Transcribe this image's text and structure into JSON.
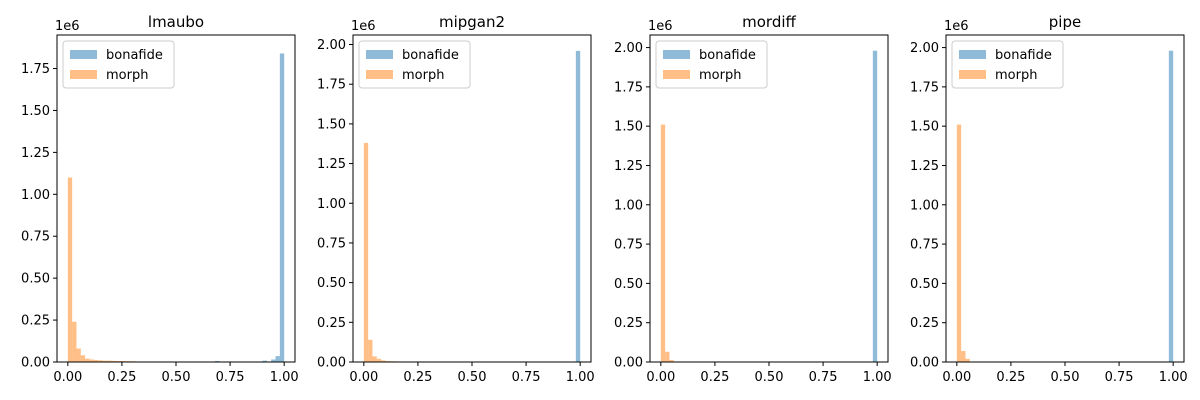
{
  "chart_data": [
    {
      "type": "bar",
      "title": "lmaubo",
      "offset_text": "1e6",
      "xlim": [
        -0.05,
        1.05
      ],
      "ylim": [
        0,
        1.95
      ],
      "xticks": [
        0.0,
        0.25,
        0.5,
        0.75,
        1.0
      ],
      "xtick_labels": [
        "0.00",
        "0.25",
        "0.50",
        "0.75",
        "1.00"
      ],
      "yticks": [
        0.0,
        0.25,
        0.5,
        0.75,
        1.0,
        1.25,
        1.5,
        1.75
      ],
      "ytick_labels": [
        "0.00",
        "0.25",
        "0.50",
        "0.75",
        "1.00",
        "1.25",
        "1.50",
        "1.75"
      ],
      "legend_position": "top-left",
      "series": [
        {
          "name": "bonafide",
          "color": "#1f77b4",
          "opacity": 0.5,
          "bins": [
            [
              0.4,
              0.003
            ],
            [
              0.68,
              0.006
            ],
            [
              0.9,
              0.008
            ],
            [
              0.94,
              0.015
            ],
            [
              0.96,
              0.035
            ],
            [
              0.98,
              1.84
            ]
          ]
        },
        {
          "name": "morph",
          "color": "#ff7f0e",
          "opacity": 0.5,
          "bins": [
            [
              0.0,
              1.1
            ],
            [
              0.02,
              0.24
            ],
            [
              0.04,
              0.08
            ],
            [
              0.06,
              0.04
            ],
            [
              0.08,
              0.02
            ],
            [
              0.1,
              0.015
            ],
            [
              0.12,
              0.012
            ],
            [
              0.14,
              0.01
            ],
            [
              0.16,
              0.008
            ],
            [
              0.18,
              0.008
            ],
            [
              0.2,
              0.007
            ],
            [
              0.22,
              0.006
            ],
            [
              0.24,
              0.006
            ],
            [
              0.26,
              0.005
            ],
            [
              0.28,
              0.005
            ],
            [
              0.3,
              0.004
            ]
          ]
        }
      ]
    },
    {
      "type": "bar",
      "title": "mipgan2",
      "offset_text": "1e6",
      "xlim": [
        -0.05,
        1.05
      ],
      "ylim": [
        0,
        2.06
      ],
      "xticks": [
        0.0,
        0.25,
        0.5,
        0.75,
        1.0
      ],
      "xtick_labels": [
        "0.00",
        "0.25",
        "0.50",
        "0.75",
        "1.00"
      ],
      "yticks": [
        0.0,
        0.25,
        0.5,
        0.75,
        1.0,
        1.25,
        1.5,
        1.75,
        2.0
      ],
      "ytick_labels": [
        "0.00",
        "0.25",
        "0.50",
        "0.75",
        "1.00",
        "1.25",
        "1.50",
        "1.75",
        "2.00"
      ],
      "legend_position": "top-left",
      "series": [
        {
          "name": "bonafide",
          "color": "#1f77b4",
          "opacity": 0.5,
          "bins": [
            [
              0.98,
              1.96
            ]
          ]
        },
        {
          "name": "morph",
          "color": "#ff7f0e",
          "opacity": 0.5,
          "bins": [
            [
              0.0,
              1.38
            ],
            [
              0.02,
              0.14
            ],
            [
              0.04,
              0.035
            ],
            [
              0.06,
              0.02
            ],
            [
              0.08,
              0.01
            ],
            [
              0.1,
              0.006
            ],
            [
              0.12,
              0.005
            ],
            [
              0.14,
              0.004
            ]
          ]
        }
      ]
    },
    {
      "type": "bar",
      "title": "mordiff",
      "offset_text": "1e6",
      "xlim": [
        -0.05,
        1.05
      ],
      "ylim": [
        0,
        2.08
      ],
      "xticks": [
        0.0,
        0.25,
        0.5,
        0.75,
        1.0
      ],
      "xtick_labels": [
        "0.00",
        "0.25",
        "0.50",
        "0.75",
        "1.00"
      ],
      "yticks": [
        0.0,
        0.25,
        0.5,
        0.75,
        1.0,
        1.25,
        1.5,
        1.75,
        2.0
      ],
      "ytick_labels": [
        "0.00",
        "0.25",
        "0.50",
        "0.75",
        "1.00",
        "1.25",
        "1.50",
        "1.75",
        "2.00"
      ],
      "legend_position": "top-left",
      "series": [
        {
          "name": "bonafide",
          "color": "#1f77b4",
          "opacity": 0.5,
          "bins": [
            [
              0.98,
              1.98
            ]
          ]
        },
        {
          "name": "morph",
          "color": "#ff7f0e",
          "opacity": 0.5,
          "bins": [
            [
              0.0,
              1.51
            ],
            [
              0.02,
              0.065
            ],
            [
              0.04,
              0.012
            ]
          ]
        }
      ]
    },
    {
      "type": "bar",
      "title": "pipe",
      "offset_text": "1e6",
      "xlim": [
        -0.05,
        1.05
      ],
      "ylim": [
        0,
        2.08
      ],
      "xticks": [
        0.0,
        0.25,
        0.5,
        0.75,
        1.0
      ],
      "xtick_labels": [
        "0.00",
        "0.25",
        "0.50",
        "0.75",
        "1.00"
      ],
      "yticks": [
        0.0,
        0.25,
        0.5,
        0.75,
        1.0,
        1.25,
        1.5,
        1.75,
        2.0
      ],
      "ytick_labels": [
        "0.00",
        "0.25",
        "0.50",
        "0.75",
        "1.00",
        "1.25",
        "1.50",
        "1.75",
        "2.00"
      ],
      "legend_position": "top-left",
      "series": [
        {
          "name": "bonafide",
          "color": "#1f77b4",
          "opacity": 0.5,
          "bins": [
            [
              0.98,
              1.98
            ]
          ]
        },
        {
          "name": "morph",
          "color": "#ff7f0e",
          "opacity": 0.5,
          "bins": [
            [
              0.0,
              1.51
            ],
            [
              0.02,
              0.07
            ],
            [
              0.04,
              0.02
            ]
          ]
        }
      ]
    }
  ]
}
